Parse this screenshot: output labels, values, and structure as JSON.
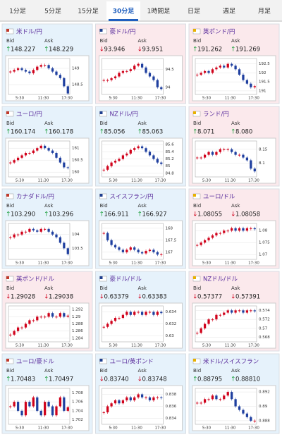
{
  "tabs": [
    "1分足",
    "5分足",
    "15分足",
    "30分足",
    "1時間足",
    "日足",
    "週足",
    "月足"
  ],
  "active_tab": 3,
  "bid_label": "Bid",
  "ask_label": "Ask",
  "time_labels": [
    "5:30",
    "11:30",
    "17:30"
  ],
  "cards": [
    {
      "name": "米ドル/円",
      "bg": "#e6f2fb",
      "bid_arrow": "↑",
      "bid": "148.227",
      "ask_arrow": "↑",
      "ask": "148.229",
      "ylim": [
        148.2,
        149.3
      ],
      "yticks": [
        149,
        148.5
      ],
      "closes": [
        148.9,
        148.95,
        149.0,
        148.95,
        148.9,
        148.85,
        148.95,
        149.05,
        149.1,
        149.1,
        149.0,
        148.9,
        148.8,
        148.7,
        148.45,
        148.23
      ]
    },
    {
      "name": "豪ドル/円",
      "bg": "#fbe9ec",
      "bid_arrow": "↓",
      "bid": "93.946",
      "ask_arrow": "↓",
      "ask": "93.951",
      "ylim": [
        93.8,
        94.8
      ],
      "yticks": [
        94.5,
        94
      ],
      "closes": [
        94.2,
        94.2,
        94.25,
        94.3,
        94.4,
        94.45,
        94.45,
        94.5,
        94.6,
        94.65,
        94.55,
        94.4,
        94.3,
        94.2,
        94.0,
        93.95
      ]
    },
    {
      "name": "英ポンド/円",
      "bg": "#fbe9ec",
      "bid_arrow": "↑",
      "bid": "191.262",
      "ask_arrow": "↑",
      "ask": "191.269",
      "ylim": [
        190.8,
        192.8
      ],
      "yticks": [
        192.5,
        192,
        191.5,
        191
      ],
      "closes": [
        191.9,
        192.0,
        192.1,
        192.0,
        192.2,
        192.3,
        192.4,
        192.3,
        192.5,
        192.4,
        192.2,
        191.9,
        191.6,
        191.4,
        191.2,
        191.26
      ]
    },
    {
      "name": "ユーロ/円",
      "bg": "#e6f2fb",
      "bid_arrow": "↑",
      "bid": "160.174",
      "ask_arrow": "↑",
      "ask": "160.178",
      "ylim": [
        159.8,
        161.3
      ],
      "yticks": [
        161,
        160.5,
        160
      ],
      "closes": [
        160.4,
        160.5,
        160.6,
        160.7,
        160.8,
        160.8,
        160.9,
        161.0,
        161.1,
        161.0,
        160.9,
        160.8,
        160.6,
        160.4,
        160.2,
        160.17
      ]
    },
    {
      "name": "NZドル/円",
      "bg": "#e6f2fb",
      "bid_arrow": "↑",
      "bid": "85.056",
      "ask_arrow": "↑",
      "ask": "85.063",
      "ylim": [
        84.7,
        85.7
      ],
      "yticks": [
        85.6,
        85.4,
        85.2,
        85,
        84.8
      ],
      "closes": [
        84.9,
        85.0,
        85.1,
        85.15,
        85.2,
        85.3,
        85.35,
        85.45,
        85.5,
        85.55,
        85.5,
        85.4,
        85.3,
        85.2,
        85.1,
        85.06
      ]
    },
    {
      "name": "ランド/円",
      "bg": "#fbe9ec",
      "bid_arrow": "↑",
      "bid": "8.071",
      "ask_arrow": "↑",
      "ask": "8.080",
      "ylim": [
        8.05,
        8.18
      ],
      "yticks": [
        8.15,
        8.1
      ],
      "closes": [
        8.12,
        8.12,
        8.13,
        8.14,
        8.13,
        8.14,
        8.15,
        8.15,
        8.15,
        8.14,
        8.13,
        8.13,
        8.12,
        8.11,
        8.08,
        8.07
      ]
    },
    {
      "name": "カナダドル/円",
      "bg": "#e6f2fb",
      "bid_arrow": "↑",
      "bid": "103.290",
      "ask_arrow": "↑",
      "ask": "103.296",
      "ylim": [
        103.1,
        104.4
      ],
      "yticks": [
        104,
        103.5
      ],
      "closes": [
        103.9,
        104.0,
        104.0,
        104.1,
        104.1,
        104.2,
        104.15,
        104.1,
        104.2,
        104.2,
        104.1,
        104.0,
        103.9,
        103.7,
        103.5,
        103.29
      ]
    },
    {
      "name": "スイスフラン/円",
      "bg": "#e6f2fb",
      "bid_arrow": "↑",
      "bid": "166.911",
      "ask_arrow": "↑",
      "ask": "166.927",
      "ylim": [
        166.7,
        168.2
      ],
      "yticks": [
        168,
        167.5,
        167
      ],
      "closes": [
        167.8,
        167.5,
        167.3,
        167.2,
        167.1,
        167.0,
        167.1,
        167.2,
        167.1,
        167.0,
        166.95,
        167.05,
        167.1,
        167.0,
        166.9,
        166.91
      ]
    },
    {
      "name": "ユーロ/ドル",
      "bg": "#fbe9ec",
      "bid_arrow": "↓",
      "bid": "1.08055",
      "ask_arrow": "↓",
      "ask": "1.08058",
      "ylim": [
        1.068,
        1.083
      ],
      "yticks": [
        1.08,
        1.075,
        1.07
      ],
      "closes": [
        1.074,
        1.075,
        1.076,
        1.077,
        1.078,
        1.079,
        1.079,
        1.08,
        1.08,
        1.081,
        1.08,
        1.081,
        1.08,
        1.081,
        1.081,
        1.0806
      ]
    },
    {
      "name": "英ポンド/ドル",
      "bg": "#fbe9ec",
      "bid_arrow": "↓",
      "bid": "1.29028",
      "ask_arrow": "↓",
      "ask": "1.29038",
      "ylim": [
        1.283,
        1.293
      ],
      "yticks": [
        1.292,
        1.29,
        1.288,
        1.286,
        1.284
      ],
      "closes": [
        1.285,
        1.286,
        1.287,
        1.287,
        1.288,
        1.289,
        1.289,
        1.29,
        1.29,
        1.29,
        1.291,
        1.29,
        1.29,
        1.291,
        1.29,
        1.2903
      ]
    },
    {
      "name": "豪ドル/ドル",
      "bg": "#e6f2fb",
      "bid_arrow": "↓",
      "bid": "0.63379",
      "ask_arrow": "↓",
      "ask": "0.63383",
      "ylim": [
        0.629,
        0.635
      ],
      "yticks": [
        0.634,
        0.632,
        0.63
      ],
      "closes": [
        0.6315,
        0.632,
        0.6325,
        0.633,
        0.633,
        0.6335,
        0.634,
        0.6335,
        0.634,
        0.634,
        0.6335,
        0.634,
        0.634,
        0.6335,
        0.634,
        0.6338
      ]
    },
    {
      "name": "NZドル/ドル",
      "bg": "#fbe9ec",
      "bid_arrow": "↓",
      "bid": "0.57377",
      "ask_arrow": "↓",
      "ask": "0.57391",
      "ylim": [
        0.567,
        0.575
      ],
      "yticks": [
        0.574,
        0.572,
        0.57,
        0.568
      ],
      "closes": [
        0.569,
        0.57,
        0.571,
        0.572,
        0.572,
        0.573,
        0.573,
        0.5735,
        0.574,
        0.5735,
        0.574,
        0.574,
        0.5735,
        0.574,
        0.574,
        0.5738
      ]
    },
    {
      "name": "ユーロ/豪ドル",
      "bg": "#e6f2fb",
      "bid_arrow": "↑",
      "bid": "1.70483",
      "ask_arrow": "↑",
      "ask": "1.70497",
      "ylim": [
        1.701,
        1.709
      ],
      "yticks": [
        1.708,
        1.706,
        1.704,
        1.702
      ],
      "closes": [
        1.705,
        1.706,
        1.704,
        1.703,
        1.706,
        1.705,
        1.707,
        1.704,
        1.703,
        1.706,
        1.705,
        1.703,
        1.705,
        1.707,
        1.704,
        1.7048
      ]
    },
    {
      "name": "ユーロ/英ポンド",
      "bg": "#e6f2fb",
      "bid_arrow": "↓",
      "bid": "0.83740",
      "ask_arrow": "↓",
      "ask": "0.83748",
      "ylim": [
        0.833,
        0.839
      ],
      "yticks": [
        0.838,
        0.836,
        0.834
      ],
      "closes": [
        0.835,
        0.836,
        0.8365,
        0.837,
        0.8365,
        0.837,
        0.8375,
        0.837,
        0.8375,
        0.838,
        0.8375,
        0.8375,
        0.837,
        0.8375,
        0.8375,
        0.8374
      ]
    },
    {
      "name": "米ドル/スイスフラン",
      "bg": "#e6f2fb",
      "bid_arrow": "↑",
      "bid": "0.88795",
      "ask_arrow": "↑",
      "ask": "0.88810",
      "ylim": [
        0.8875,
        0.8925
      ],
      "yticks": [
        0.892,
        0.89,
        0.888
      ],
      "closes": [
        0.8905,
        0.8905,
        0.891,
        0.891,
        0.8915,
        0.891,
        0.891,
        0.8915,
        0.892,
        0.891,
        0.89,
        0.8895,
        0.889,
        0.8885,
        0.888,
        0.888
      ]
    }
  ]
}
